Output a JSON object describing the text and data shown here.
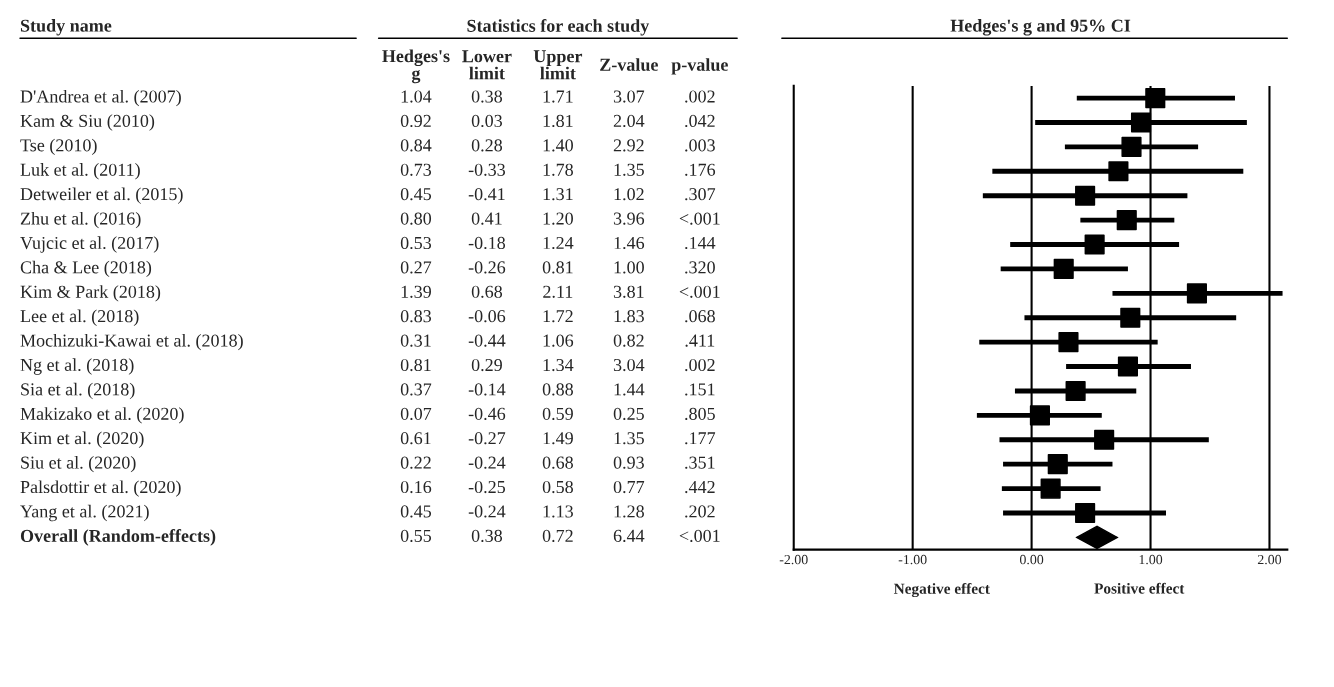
{
  "chart_data": [
    {
      "type": "other",
      "title": "Statistics for each study",
      "categories": [
        "Study name",
        "Hedges's g",
        "Lower limit",
        "Upper limit",
        "Z-value",
        "p-value"
      ],
      "y_categories": [
        "D'Andrea et al. (2007)",
        "Kam & Siu (2010)",
        "Tse (2010)",
        "Luk et al. (2011)",
        "Detweiler et al. (2015)",
        "Zhu et al. (2016)",
        "Vujcic et al. (2017)",
        "Cha & Lee (2018)",
        "Kim & Park (2018)",
        "Lee et al. (2018)",
        "Mochizuki-Kawai et al. (2018)",
        "Ng et al. (2018)",
        "Sia et al. (2018)",
        "Makizako et al. (2020)",
        "Kim et al. (2020)",
        "Siu et al. (2020)",
        "Palsdottir et al. (2020)",
        "Yang et al. (2021)",
        "Overall (Random-effects)"
      ],
      "cell_labels": [
        [
          "1.04",
          "0.38",
          "1.71",
          "3.07",
          ".002"
        ],
        [
          "0.92",
          "0.03",
          "1.81",
          "2.04",
          ".042"
        ],
        [
          "0.84",
          "0.28",
          "1.40",
          "2.92",
          ".003"
        ],
        [
          "0.73",
          "-0.33",
          "1.78",
          "1.35",
          ".176"
        ],
        [
          "0.45",
          "-0.41",
          "1.31",
          "1.02",
          ".307"
        ],
        [
          "0.80",
          "0.41",
          "1.20",
          "3.96",
          "<.001"
        ],
        [
          "0.53",
          "-0.18",
          "1.24",
          "1.46",
          ".144"
        ],
        [
          "0.27",
          "-0.26",
          "0.81",
          "1.00",
          ".320"
        ],
        [
          "1.39",
          "0.68",
          "2.11",
          "3.81",
          "<.001"
        ],
        [
          "0.83",
          "-0.06",
          "1.72",
          "1.83",
          ".068"
        ],
        [
          "0.31",
          "-0.44",
          "1.06",
          "0.82",
          ".411"
        ],
        [
          "0.81",
          "0.29",
          "1.34",
          "3.04",
          ".002"
        ],
        [
          "0.37",
          "-0.14",
          "0.88",
          "1.44",
          ".151"
        ],
        [
          "0.07",
          "-0.46",
          "0.59",
          "0.25",
          ".805"
        ],
        [
          "0.61",
          "-0.27",
          "1.49",
          "1.35",
          ".177"
        ],
        [
          "0.22",
          "-0.24",
          "0.68",
          "0.93",
          ".351"
        ],
        [
          "0.16",
          "-0.25",
          "0.58",
          "0.77",
          ".442"
        ],
        [
          "0.45",
          "-0.24",
          "1.13",
          "1.28",
          ".202"
        ],
        [
          "0.55",
          "0.38",
          "0.72",
          "6.44",
          "<.001"
        ]
      ]
    },
    {
      "type": "scatter",
      "title": "Hedges's g and 95% CI",
      "orientation": "horizontal",
      "categories": [
        null,
        null,
        null,
        null,
        null,
        null,
        null,
        null,
        null,
        null,
        null,
        null,
        null,
        null,
        null,
        null,
        null,
        null,
        null
      ],
      "series": [
        {
          "color": "#000000",
          "marker": "square",
          "values": [
            1.04,
            0.92,
            0.84,
            0.73,
            0.45,
            0.8,
            0.53,
            0.27,
            1.39,
            0.83,
            0.31,
            0.81,
            0.37,
            0.07,
            0.61,
            0.22,
            0.16,
            0.45,
            null
          ],
          "errors": [
            [
              0.38,
              1.71
            ],
            [
              0.03,
              1.81
            ],
            [
              0.28,
              1.4
            ],
            [
              -0.33,
              1.78
            ],
            [
              -0.41,
              1.31
            ],
            [
              0.41,
              1.2
            ],
            [
              -0.18,
              1.24
            ],
            [
              -0.26,
              0.81
            ],
            [
              0.68,
              2.11
            ],
            [
              -0.06,
              1.72
            ],
            [
              -0.44,
              1.06
            ],
            [
              0.29,
              1.34
            ],
            [
              -0.14,
              0.88
            ],
            [
              -0.46,
              0.59
            ],
            [
              -0.27,
              1.49
            ],
            [
              -0.24,
              0.68
            ],
            [
              -0.25,
              0.58
            ],
            [
              -0.24,
              1.13
            ],
            null
          ]
        },
        {
          "color": "#000000",
          "marker": "diamond",
          "values": [
            null,
            null,
            null,
            null,
            null,
            null,
            null,
            null,
            null,
            null,
            null,
            null,
            null,
            null,
            null,
            null,
            null,
            null,
            0.55
          ],
          "errors": [
            null,
            null,
            null,
            null,
            null,
            null,
            null,
            null,
            null,
            null,
            null,
            null,
            null,
            null,
            null,
            null,
            null,
            null,
            [
              0.38,
              0.72
            ]
          ]
        }
      ],
      "xlim": [
        -2.0,
        2.15
      ],
      "xticks": [
        {
          "value": -2,
          "label": "-2.00"
        },
        {
          "value": -1,
          "label": "-1.00"
        },
        {
          "value": 0,
          "label": "0.00"
        },
        {
          "value": 1,
          "label": "1.00"
        },
        {
          "value": 2,
          "label": "2.00"
        }
      ],
      "ref_lines": [
        {
          "axis": "x",
          "value": -1,
          "color": "#000000"
        },
        {
          "axis": "x",
          "value": 0,
          "color": "#000000"
        },
        {
          "axis": "x",
          "value": 1,
          "color": "#000000"
        },
        {
          "axis": "x",
          "value": 2,
          "color": "#000000"
        }
      ],
      "annotations": [
        "Negative effect",
        "Positive effect"
      ],
      "tick_labels": "x",
      "grid": false,
      "legend": false
    }
  ]
}
